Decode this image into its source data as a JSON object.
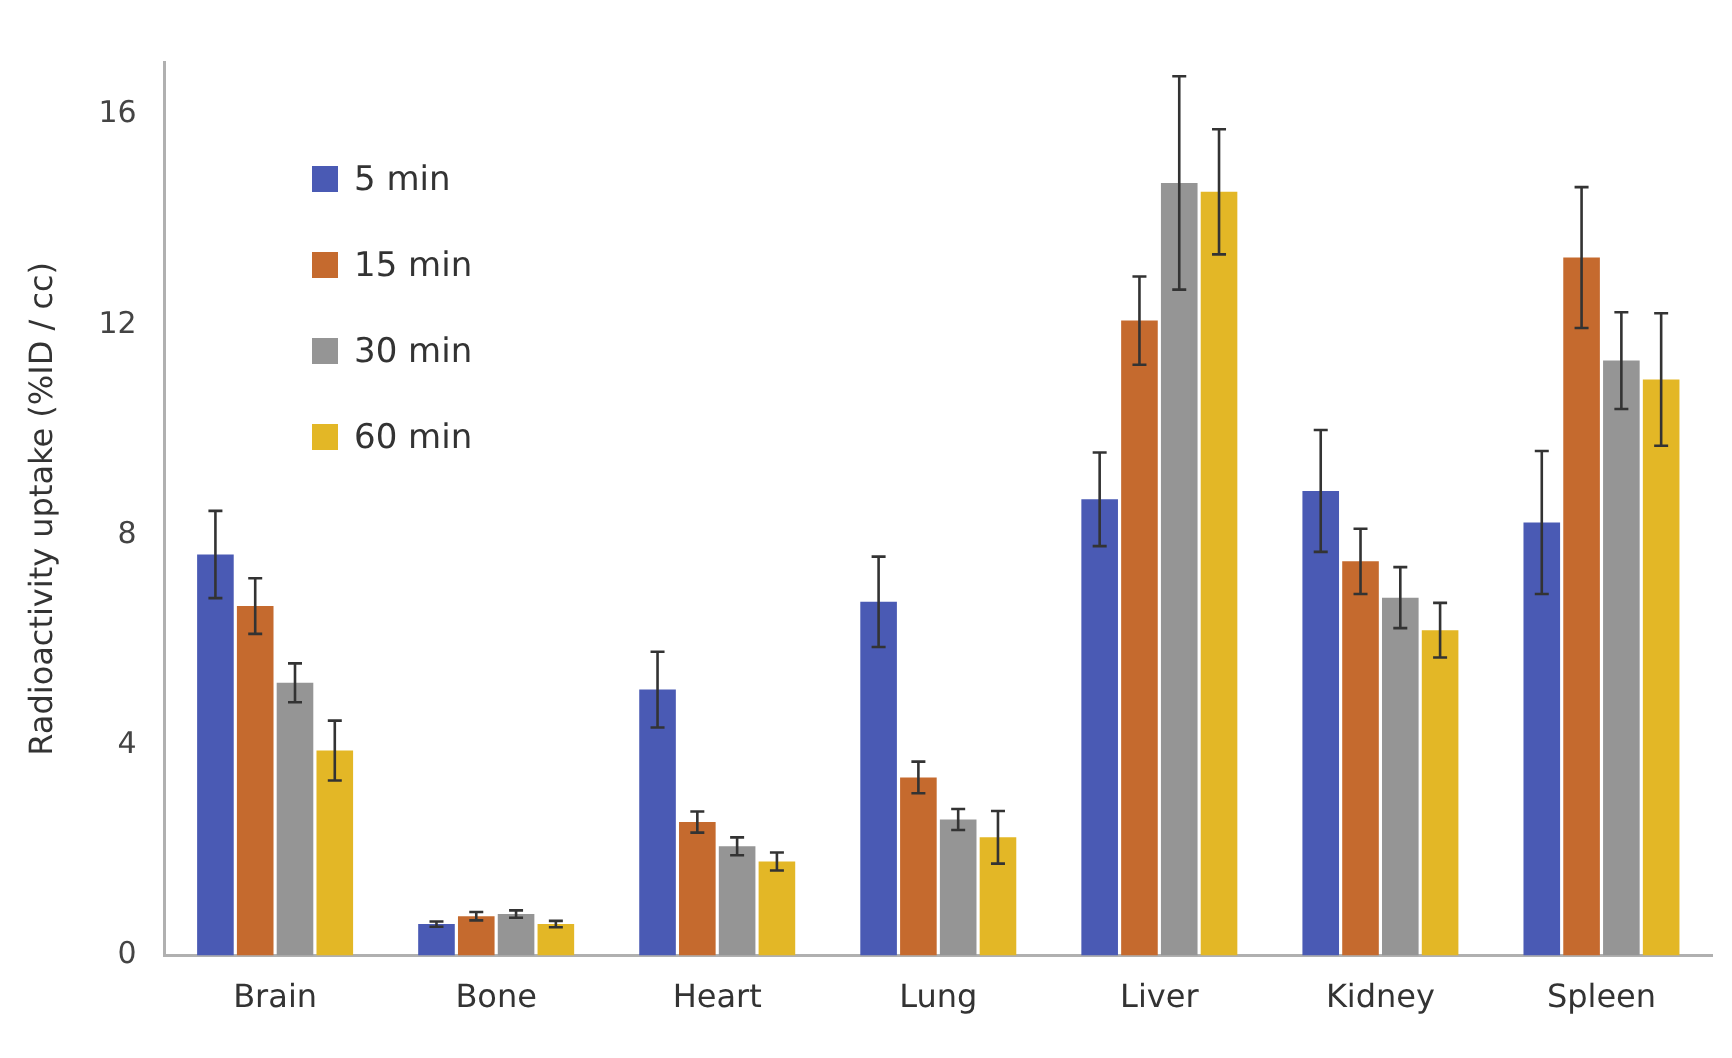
{
  "chart_data": {
    "type": "bar",
    "ylabel": "Radioactivity uptake (%ID / cc)",
    "categories": [
      "Brain",
      "Bone",
      "Heart",
      "Lung",
      "Liver",
      "Kidney",
      "Spleen"
    ],
    "series": [
      {
        "name": "5 min",
        "color": "#4a5ab4",
        "values": [
          7.63,
          0.6,
          5.06,
          6.73,
          8.68,
          8.84,
          8.24
        ],
        "errors": [
          0.83,
          0.05,
          0.72,
          0.86,
          0.89,
          1.16,
          1.36
        ]
      },
      {
        "name": "15 min",
        "color": "#c56a2e",
        "values": [
          6.65,
          0.75,
          2.54,
          3.39,
          12.08,
          7.5,
          13.28
        ],
        "errors": [
          0.53,
          0.08,
          0.2,
          0.3,
          0.84,
          0.62,
          1.34
        ]
      },
      {
        "name": "30 min",
        "color": "#959595",
        "values": [
          5.19,
          0.79,
          2.08,
          2.59,
          14.7,
          6.81,
          11.32
        ],
        "errors": [
          0.37,
          0.07,
          0.17,
          0.2,
          2.03,
          0.58,
          0.92
        ]
      },
      {
        "name": "60 min",
        "color": "#e3b726",
        "values": [
          3.9,
          0.6,
          1.79,
          2.25,
          14.53,
          6.19,
          10.96
        ],
        "errors": [
          0.57,
          0.06,
          0.17,
          0.5,
          1.19,
          0.52,
          1.26
        ]
      }
    ],
    "ylim": [
      0,
      17
    ],
    "yticks": [
      0,
      4,
      8,
      12,
      16
    ],
    "grid": false,
    "legend": "top left"
  }
}
